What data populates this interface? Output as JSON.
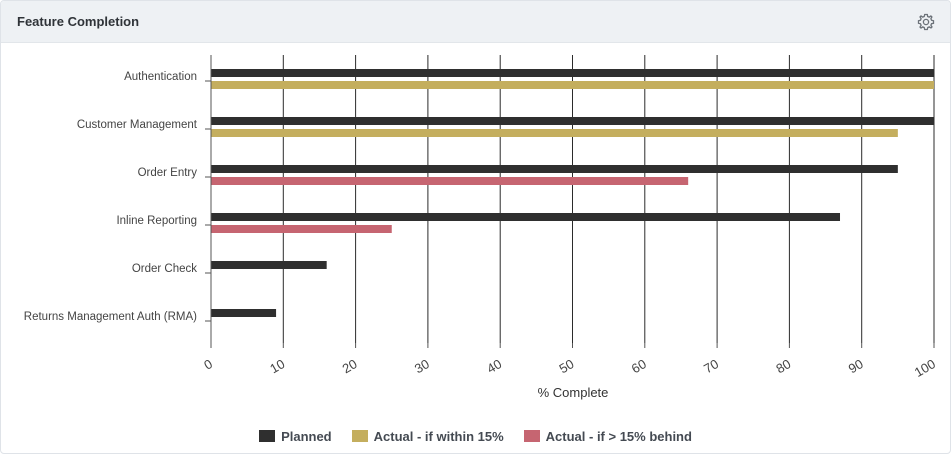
{
  "panel": {
    "title": "Feature Completion",
    "settings_icon": "gear-icon"
  },
  "chart_data": {
    "type": "bar",
    "orientation": "horizontal",
    "title": "",
    "xlabel": "% Complete",
    "ylabel": "",
    "xlim": [
      0,
      100
    ],
    "x_ticks": [
      0,
      10,
      20,
      30,
      40,
      50,
      60,
      70,
      80,
      90,
      100
    ],
    "grid": true,
    "legend_position": "bottom",
    "categories": [
      "Authentication",
      "Customer Management",
      "Order Entry",
      "Inline Reporting",
      "Order Check",
      "Returns Management Auth (RMA)"
    ],
    "series": [
      {
        "name": "Planned",
        "color": "#2f2f2f",
        "values": [
          100,
          100,
          95,
          87,
          16,
          9
        ]
      },
      {
        "name": "Actual - if within 15%",
        "color": "#c4ae5e",
        "values": [
          100,
          95,
          null,
          null,
          null,
          null
        ]
      },
      {
        "name": "Actual - if > 15% behind",
        "color": "#c66571",
        "values": [
          null,
          null,
          66,
          25,
          null,
          null
        ]
      }
    ]
  }
}
